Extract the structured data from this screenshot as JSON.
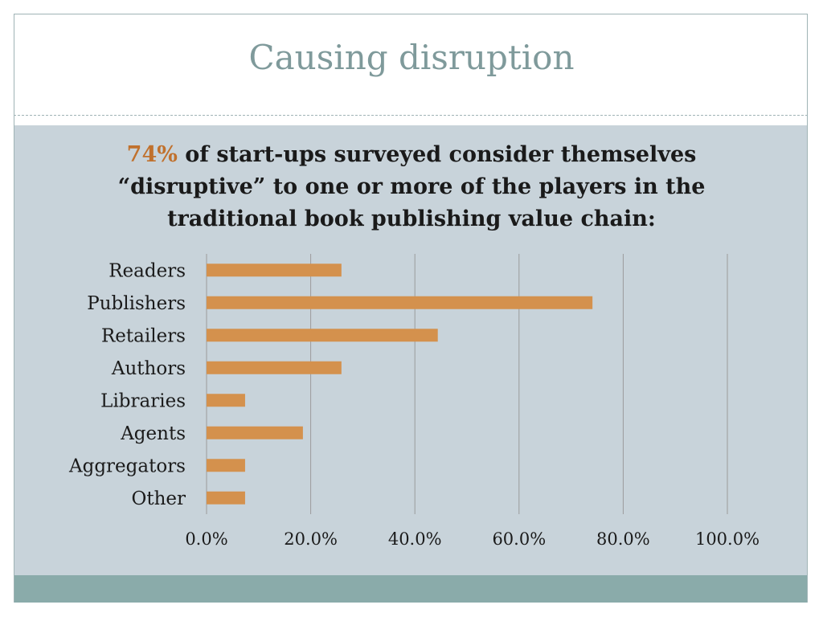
{
  "slide": {
    "title": "Causing disruption",
    "headline": {
      "highlight": "74%",
      "line1_rest": " of start-ups surveyed consider themselves",
      "line2": "“disruptive” to one or more of the players in the",
      "line3": "traditional book publishing value chain:"
    }
  },
  "colors": {
    "bar": "#d4914d",
    "highlight": "#c0712d",
    "title": "#7f9a9b",
    "content_bg": "#c8d3da",
    "bottom_bar": "#8aabaa",
    "gridline": "#9b9b9b"
  },
  "chart_data": {
    "type": "bar",
    "orientation": "horizontal",
    "categories": [
      "Readers",
      "Publishers",
      "Retailers",
      "Authors",
      "Libraries",
      "Agents",
      "Aggregators",
      "Other"
    ],
    "values": [
      25.9,
      74.1,
      44.4,
      25.9,
      7.4,
      18.5,
      7.4,
      7.4
    ],
    "xlim": [
      0,
      100
    ],
    "ticks": [
      0,
      20,
      40,
      60,
      80,
      100
    ],
    "tick_labels": [
      "0.0%",
      "20.0%",
      "40.0%",
      "60.0%",
      "80.0%",
      "100.0%"
    ],
    "grid": true,
    "legend": "none"
  }
}
